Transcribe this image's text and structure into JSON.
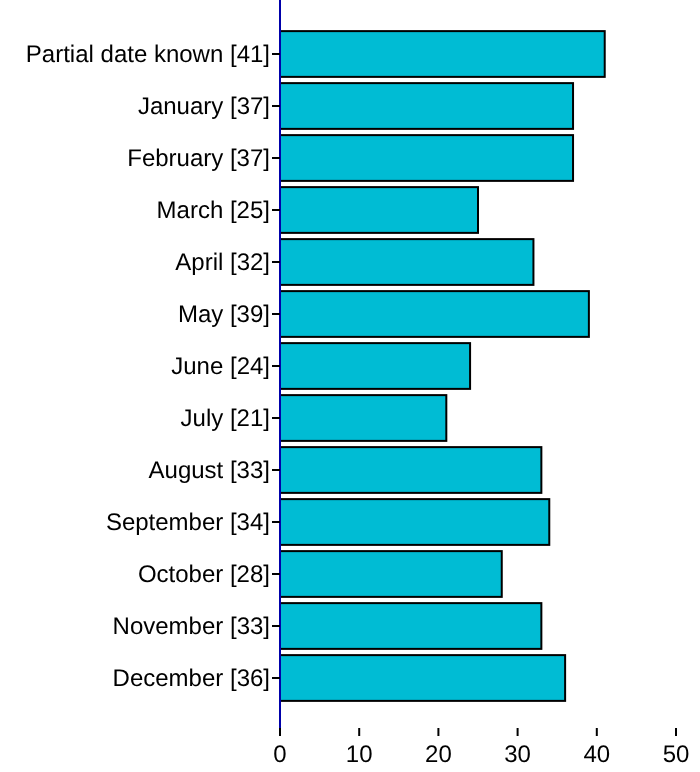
{
  "chart_data": {
    "type": "bar",
    "orientation": "horizontal",
    "categories": [
      "Partial date known [41]",
      "January [37]",
      "February [37]",
      "March [25]",
      "April [32]",
      "May [39]",
      "June [24]",
      "July [21]",
      "August [33]",
      "September [34]",
      "October [28]",
      "November [33]",
      "December [36]"
    ],
    "values": [
      41,
      37,
      37,
      25,
      32,
      39,
      24,
      21,
      33,
      34,
      28,
      33,
      36
    ],
    "color": "#00bcd4",
    "xlim": [
      0,
      50
    ],
    "xticks": [
      0,
      10,
      20,
      30,
      40,
      50
    ],
    "grid": false
  }
}
